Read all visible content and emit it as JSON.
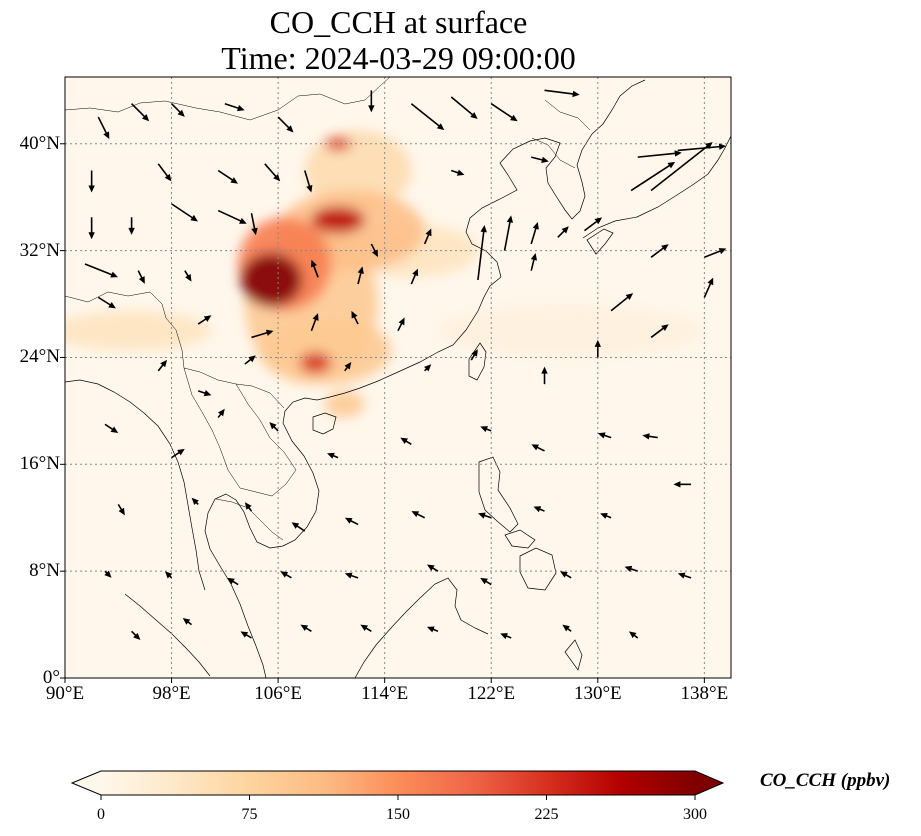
{
  "title": {
    "line1": "CO_CCH at surface",
    "line2": "Time: 2024-03-29 09:00:00"
  },
  "map": {
    "projection": "PlateCarree",
    "lon_range": [
      90,
      140
    ],
    "lat_range": [
      0,
      45
    ],
    "gridlines": "dotted grey",
    "lat_ticks": [
      {
        "value": 0,
        "label": "0°"
      },
      {
        "value": 8,
        "label": "8°N"
      },
      {
        "value": 16,
        "label": "16°N"
      },
      {
        "value": 24,
        "label": "24°N"
      },
      {
        "value": 32,
        "label": "32°N"
      },
      {
        "value": 40,
        "label": "40°N"
      }
    ],
    "lon_ticks": [
      {
        "value": 90,
        "label": "90°E"
      },
      {
        "value": 98,
        "label": "98°E"
      },
      {
        "value": 106,
        "label": "106°E"
      },
      {
        "value": 114,
        "label": "114°E"
      },
      {
        "value": 122,
        "label": "122°E"
      },
      {
        "value": 130,
        "label": "130°E"
      },
      {
        "value": 138,
        "label": "138°E"
      }
    ],
    "colormap": "OrRd",
    "plumes": [
      {
        "lon": 105.5,
        "lat": 29.8,
        "rlon": 2.3,
        "rlat": 2.0,
        "intensity": 1.0
      },
      {
        "lon": 106.5,
        "lat": 31.0,
        "rlon": 3.5,
        "rlat": 3.5,
        "intensity": 0.55
      },
      {
        "lon": 108.5,
        "lat": 28.0,
        "rlon": 5.0,
        "rlat": 6.0,
        "intensity": 0.3
      },
      {
        "lon": 108.8,
        "lat": 23.6,
        "rlon": 1.2,
        "rlat": 0.8,
        "intensity": 0.75
      },
      {
        "lon": 109.5,
        "lat": 24.5,
        "rlon": 5.0,
        "rlat": 2.5,
        "intensity": 0.3
      },
      {
        "lon": 110.5,
        "lat": 34.3,
        "rlon": 2.0,
        "rlat": 1.0,
        "intensity": 0.85
      },
      {
        "lon": 111.5,
        "lat": 33.5,
        "rlon": 5.5,
        "rlat": 3.0,
        "intensity": 0.35
      },
      {
        "lon": 110.5,
        "lat": 40.0,
        "rlon": 1.0,
        "rlat": 0.5,
        "intensity": 0.75
      },
      {
        "lon": 112.0,
        "lat": 38.0,
        "rlon": 4.0,
        "rlat": 3.0,
        "intensity": 0.2
      },
      {
        "lon": 116.0,
        "lat": 32.0,
        "rlon": 5.0,
        "rlat": 2.0,
        "intensity": 0.15
      },
      {
        "lon": 95.0,
        "lat": 26.0,
        "rlon": 6.0,
        "rlat": 1.5,
        "intensity": 0.15
      },
      {
        "lon": 111.0,
        "lat": 20.5,
        "rlon": 1.5,
        "rlat": 1.0,
        "intensity": 0.3
      },
      {
        "lon": 128.0,
        "lat": 26.0,
        "rlon": 10.0,
        "rlat": 2.0,
        "intensity": 0.05
      }
    ],
    "wind_arrows": [
      {
        "lon": 92.5,
        "lat": 42.0,
        "u": 0.5,
        "v": -1.0
      },
      {
        "lon": 95.0,
        "lat": 43.0,
        "u": 0.8,
        "v": -0.8
      },
      {
        "lon": 98.0,
        "lat": 43.0,
        "u": 0.6,
        "v": -0.6
      },
      {
        "lon": 102.0,
        "lat": 43.0,
        "u": 0.9,
        "v": -0.3
      },
      {
        "lon": 106.0,
        "lat": 42.0,
        "u": 0.7,
        "v": -0.7
      },
      {
        "lon": 113.0,
        "lat": 44.0,
        "u": 0.0,
        "v": -1.0
      },
      {
        "lon": 116.0,
        "lat": 43.0,
        "u": 1.5,
        "v": -1.2
      },
      {
        "lon": 119.0,
        "lat": 43.5,
        "u": 1.2,
        "v": -1.0
      },
      {
        "lon": 122.0,
        "lat": 43.0,
        "u": 1.2,
        "v": -0.8
      },
      {
        "lon": 126.0,
        "lat": 44.0,
        "u": 1.6,
        "v": -0.2
      },
      {
        "lon": 133.0,
        "lat": 39.0,
        "u": 2.0,
        "v": 0.2
      },
      {
        "lon": 136.0,
        "lat": 39.5,
        "u": 2.2,
        "v": 0.2
      },
      {
        "lon": 132.5,
        "lat": 36.5,
        "u": 2.0,
        "v": 1.3
      },
      {
        "lon": 134.0,
        "lat": 36.5,
        "u": 2.8,
        "v": 2.2
      },
      {
        "lon": 92.0,
        "lat": 38.0,
        "u": 0.0,
        "v": -1.0
      },
      {
        "lon": 97.0,
        "lat": 38.5,
        "u": 0.6,
        "v": -0.8
      },
      {
        "lon": 101.5,
        "lat": 38.0,
        "u": 0.9,
        "v": -0.6
      },
      {
        "lon": 105.0,
        "lat": 38.5,
        "u": 0.7,
        "v": -0.8
      },
      {
        "lon": 108.0,
        "lat": 38.0,
        "u": 0.3,
        "v": -1.0
      },
      {
        "lon": 119.0,
        "lat": 38.0,
        "u": 0.6,
        "v": -0.2
      },
      {
        "lon": 125.0,
        "lat": 39.0,
        "u": 0.8,
        "v": -0.2
      },
      {
        "lon": 92.0,
        "lat": 34.5,
        "u": 0.0,
        "v": -1.0
      },
      {
        "lon": 95.0,
        "lat": 34.5,
        "u": 0.0,
        "v": -0.8
      },
      {
        "lon": 98.0,
        "lat": 35.5,
        "u": 1.2,
        "v": -0.8
      },
      {
        "lon": 101.5,
        "lat": 35.0,
        "u": 1.3,
        "v": -0.6
      },
      {
        "lon": 104.0,
        "lat": 34.8,
        "u": 0.2,
        "v": -1.0
      },
      {
        "lon": 113.0,
        "lat": 32.5,
        "u": 0.3,
        "v": -0.6
      },
      {
        "lon": 117.0,
        "lat": 32.5,
        "u": 0.3,
        "v": 0.7
      },
      {
        "lon": 123.0,
        "lat": 32.0,
        "u": 0.3,
        "v": 1.6
      },
      {
        "lon": 125.0,
        "lat": 32.5,
        "u": 0.3,
        "v": 1.0
      },
      {
        "lon": 127.0,
        "lat": 33.0,
        "u": 0.5,
        "v": 0.5
      },
      {
        "lon": 129.0,
        "lat": 33.5,
        "u": 0.8,
        "v": 0.6
      },
      {
        "lon": 91.5,
        "lat": 31.0,
        "u": 1.5,
        "v": -0.6
      },
      {
        "lon": 95.5,
        "lat": 30.5,
        "u": 0.3,
        "v": -0.6
      },
      {
        "lon": 99.0,
        "lat": 30.5,
        "u": 0.3,
        "v": -0.5
      },
      {
        "lon": 109.0,
        "lat": 30.0,
        "u": -0.3,
        "v": 0.8
      },
      {
        "lon": 112.0,
        "lat": 29.5,
        "u": 0.2,
        "v": 0.8
      },
      {
        "lon": 116.0,
        "lat": 29.5,
        "u": 0.3,
        "v": 0.7
      },
      {
        "lon": 121.0,
        "lat": 29.8,
        "u": 0.3,
        "v": 2.5
      },
      {
        "lon": 125.0,
        "lat": 30.5,
        "u": 0.2,
        "v": 0.8
      },
      {
        "lon": 134.0,
        "lat": 31.5,
        "u": 0.8,
        "v": 0.6
      },
      {
        "lon": 138.0,
        "lat": 31.5,
        "u": 1.0,
        "v": 0.4
      },
      {
        "lon": 92.5,
        "lat": 28.5,
        "u": 0.8,
        "v": -0.5
      },
      {
        "lon": 100.0,
        "lat": 26.5,
        "u": 0.6,
        "v": 0.4
      },
      {
        "lon": 104.0,
        "lat": 25.5,
        "u": 1.0,
        "v": 0.3
      },
      {
        "lon": 108.5,
        "lat": 26.0,
        "u": 0.3,
        "v": 0.8
      },
      {
        "lon": 112.0,
        "lat": 26.5,
        "u": -0.3,
        "v": 0.6
      },
      {
        "lon": 115.0,
        "lat": 26.0,
        "u": 0.3,
        "v": 0.6
      },
      {
        "lon": 131.0,
        "lat": 27.5,
        "u": 1.0,
        "v": 0.8
      },
      {
        "lon": 134.0,
        "lat": 25.5,
        "u": 0.8,
        "v": 0.6
      },
      {
        "lon": 138.0,
        "lat": 28.5,
        "u": 0.4,
        "v": 0.9
      },
      {
        "lon": 97.0,
        "lat": 23.0,
        "u": 0.4,
        "v": 0.5
      },
      {
        "lon": 100.0,
        "lat": 21.5,
        "u": 0.6,
        "v": -0.2
      },
      {
        "lon": 103.5,
        "lat": 23.5,
        "u": 0.5,
        "v": 0.4
      },
      {
        "lon": 111.0,
        "lat": 23.0,
        "u": 0.3,
        "v": 0.4
      },
      {
        "lon": 117.0,
        "lat": 23.0,
        "u": 0.3,
        "v": 0.3
      },
      {
        "lon": 120.5,
        "lat": 23.8,
        "u": 0.3,
        "v": 0.5
      },
      {
        "lon": 126.0,
        "lat": 22.0,
        "u": 0.0,
        "v": 0.8
      },
      {
        "lon": 130.0,
        "lat": 24.0,
        "u": 0.0,
        "v": 0.8
      },
      {
        "lon": 93.0,
        "lat": 19.0,
        "u": 0.6,
        "v": -0.4
      },
      {
        "lon": 98.0,
        "lat": 16.5,
        "u": 0.6,
        "v": 0.4
      },
      {
        "lon": 101.5,
        "lat": 19.5,
        "u": 0.3,
        "v": 0.4
      },
      {
        "lon": 106.0,
        "lat": 18.5,
        "u": -0.4,
        "v": 0.4
      },
      {
        "lon": 110.5,
        "lat": 16.5,
        "u": -0.5,
        "v": 0.2
      },
      {
        "lon": 116.0,
        "lat": 17.5,
        "u": -0.5,
        "v": 0.3
      },
      {
        "lon": 122.0,
        "lat": 18.5,
        "u": -0.5,
        "v": 0.2
      },
      {
        "lon": 126.0,
        "lat": 17.0,
        "u": -0.6,
        "v": 0.3
      },
      {
        "lon": 131.0,
        "lat": 18.0,
        "u": -0.6,
        "v": 0.2
      },
      {
        "lon": 134.5,
        "lat": 18.0,
        "u": -0.7,
        "v": 0.1
      },
      {
        "lon": 137.0,
        "lat": 14.5,
        "u": -0.8,
        "v": 0.0
      },
      {
        "lon": 94.0,
        "lat": 13.0,
        "u": 0.3,
        "v": -0.5
      },
      {
        "lon": 100.0,
        "lat": 13.0,
        "u": -0.3,
        "v": 0.3
      },
      {
        "lon": 104.0,
        "lat": 12.5,
        "u": -0.3,
        "v": 0.4
      },
      {
        "lon": 108.0,
        "lat": 11.0,
        "u": -0.6,
        "v": 0.4
      },
      {
        "lon": 112.0,
        "lat": 11.5,
        "u": -0.6,
        "v": 0.3
      },
      {
        "lon": 117.0,
        "lat": 12.0,
        "u": -0.6,
        "v": 0.3
      },
      {
        "lon": 122.0,
        "lat": 12.0,
        "u": -0.6,
        "v": 0.2
      },
      {
        "lon": 126.0,
        "lat": 12.5,
        "u": -0.5,
        "v": 0.2
      },
      {
        "lon": 131.0,
        "lat": 12.0,
        "u": -0.5,
        "v": 0.2
      },
      {
        "lon": 93.0,
        "lat": 8.0,
        "u": 0.3,
        "v": -0.3
      },
      {
        "lon": 98.0,
        "lat": 7.5,
        "u": -0.3,
        "v": 0.3
      },
      {
        "lon": 103.0,
        "lat": 7.0,
        "u": -0.5,
        "v": 0.3
      },
      {
        "lon": 107.0,
        "lat": 7.5,
        "u": -0.5,
        "v": 0.3
      },
      {
        "lon": 112.0,
        "lat": 7.5,
        "u": -0.6,
        "v": 0.2
      },
      {
        "lon": 118.0,
        "lat": 8.0,
        "u": -0.5,
        "v": 0.3
      },
      {
        "lon": 122.0,
        "lat": 7.0,
        "u": -0.5,
        "v": 0.3
      },
      {
        "lon": 128.0,
        "lat": 7.5,
        "u": -0.5,
        "v": 0.3
      },
      {
        "lon": 133.0,
        "lat": 8.0,
        "u": -0.6,
        "v": 0.2
      },
      {
        "lon": 137.0,
        "lat": 7.5,
        "u": -0.6,
        "v": 0.2
      },
      {
        "lon": 95.0,
        "lat": 3.5,
        "u": 0.4,
        "v": -0.4
      },
      {
        "lon": 99.5,
        "lat": 4.0,
        "u": -0.4,
        "v": 0.3
      },
      {
        "lon": 104.0,
        "lat": 3.0,
        "u": -0.5,
        "v": 0.3
      },
      {
        "lon": 108.5,
        "lat": 3.5,
        "u": -0.5,
        "v": 0.3
      },
      {
        "lon": 113.0,
        "lat": 3.5,
        "u": -0.5,
        "v": 0.3
      },
      {
        "lon": 118.0,
        "lat": 3.5,
        "u": -0.5,
        "v": 0.2
      },
      {
        "lon": 123.5,
        "lat": 3.0,
        "u": -0.5,
        "v": 0.2
      },
      {
        "lon": 128.0,
        "lat": 3.5,
        "u": -0.4,
        "v": 0.3
      },
      {
        "lon": 133.0,
        "lat": 3.0,
        "u": -0.4,
        "v": 0.3
      }
    ]
  },
  "colorbar": {
    "label": "CO_CCH (ppbv)",
    "min": 0,
    "max": 300,
    "extend": "both",
    "ticks": [
      {
        "value": 0,
        "label": "0"
      },
      {
        "value": 75,
        "label": "75"
      },
      {
        "value": 150,
        "label": "150"
      },
      {
        "value": 225,
        "label": "225"
      },
      {
        "value": 300,
        "label": "300"
      }
    ],
    "colors": [
      "#fff7ec",
      "#fee8c8",
      "#fdd49e",
      "#fdbb84",
      "#fc8d59",
      "#ef6548",
      "#d7301f",
      "#b30000",
      "#7f0000"
    ]
  }
}
